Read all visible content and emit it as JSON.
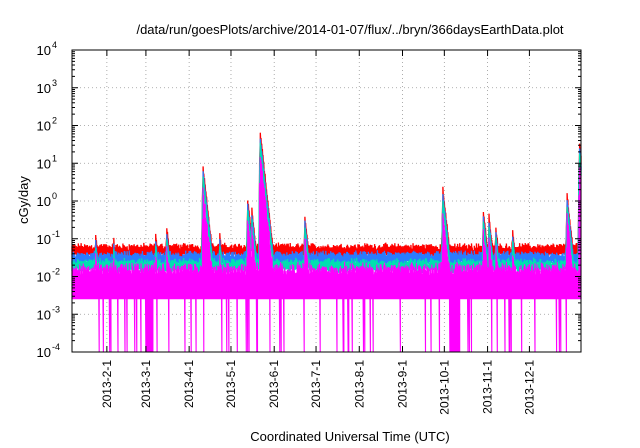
{
  "chart_data": {
    "type": "line",
    "title": "/data/run/goesPlots/archive/2014-01-07/flux/../bryn/366daysEarthData.plot",
    "xlabel": "Coordinated Universal Time (UTC)",
    "ylabel": "cGy/day",
    "yscale": "log",
    "ylim": [
      0.0001,
      10000
    ],
    "xlim": [
      "2013-01-07",
      "2014-01-07"
    ],
    "grid": true,
    "x_ticks": [
      "2013-2-1",
      "2013-3-1",
      "2013-4-1",
      "2013-5-1",
      "2013-6-1",
      "2013-7-1",
      "2013-8-1",
      "2013-9-1",
      "2013-10-1",
      "2013-11-1",
      "2013-12-1"
    ],
    "y_ticks": [
      {
        "base": "10",
        "exp": "-4"
      },
      {
        "base": "10",
        "exp": "-3"
      },
      {
        "base": "10",
        "exp": "-2"
      },
      {
        "base": "10",
        "exp": "-1"
      },
      {
        "base": "10",
        "exp": "0"
      },
      {
        "base": "10",
        "exp": "1"
      },
      {
        "base": "10",
        "exp": "2"
      },
      {
        "base": "10",
        "exp": "3"
      },
      {
        "base": "10",
        "exp": "4"
      }
    ],
    "series_colors": [
      "#ff0000",
      "#2b7bff",
      "#00e0b0",
      "#ff00ff"
    ],
    "baselines": [
      0.045,
      0.028,
      0.018,
      0.009
    ],
    "events": [
      {
        "date": "2013-01-24",
        "peak": 0.09
      },
      {
        "date": "2013-02-06",
        "peak": 0.07
      },
      {
        "date": "2013-03-08",
        "peak": 0.09
      },
      {
        "date": "2013-03-16",
        "peak": 0.15
      },
      {
        "date": "2013-04-11",
        "peak": 6.0
      },
      {
        "date": "2013-04-23",
        "peak": 0.1
      },
      {
        "date": "2013-05-13",
        "peak": 0.8
      },
      {
        "date": "2013-05-16",
        "peak": 0.45
      },
      {
        "date": "2013-05-22",
        "peak": 50
      },
      {
        "date": "2013-06-23",
        "peak": 0.3
      },
      {
        "date": "2013-09-30",
        "peak": 1.6
      },
      {
        "date": "2013-10-29",
        "peak": 0.4
      },
      {
        "date": "2013-11-02",
        "peak": 0.3
      },
      {
        "date": "2013-11-07",
        "peak": 0.15
      },
      {
        "date": "2013-11-19",
        "peak": 0.12
      },
      {
        "date": "2013-12-28",
        "peak": 1.1
      },
      {
        "date": "2014-01-06",
        "peak": 25
      }
    ],
    "dropout_spans": [
      [
        "2013-03-01",
        "2013-03-06"
      ],
      [
        "2013-10-05",
        "2013-10-12"
      ]
    ]
  }
}
